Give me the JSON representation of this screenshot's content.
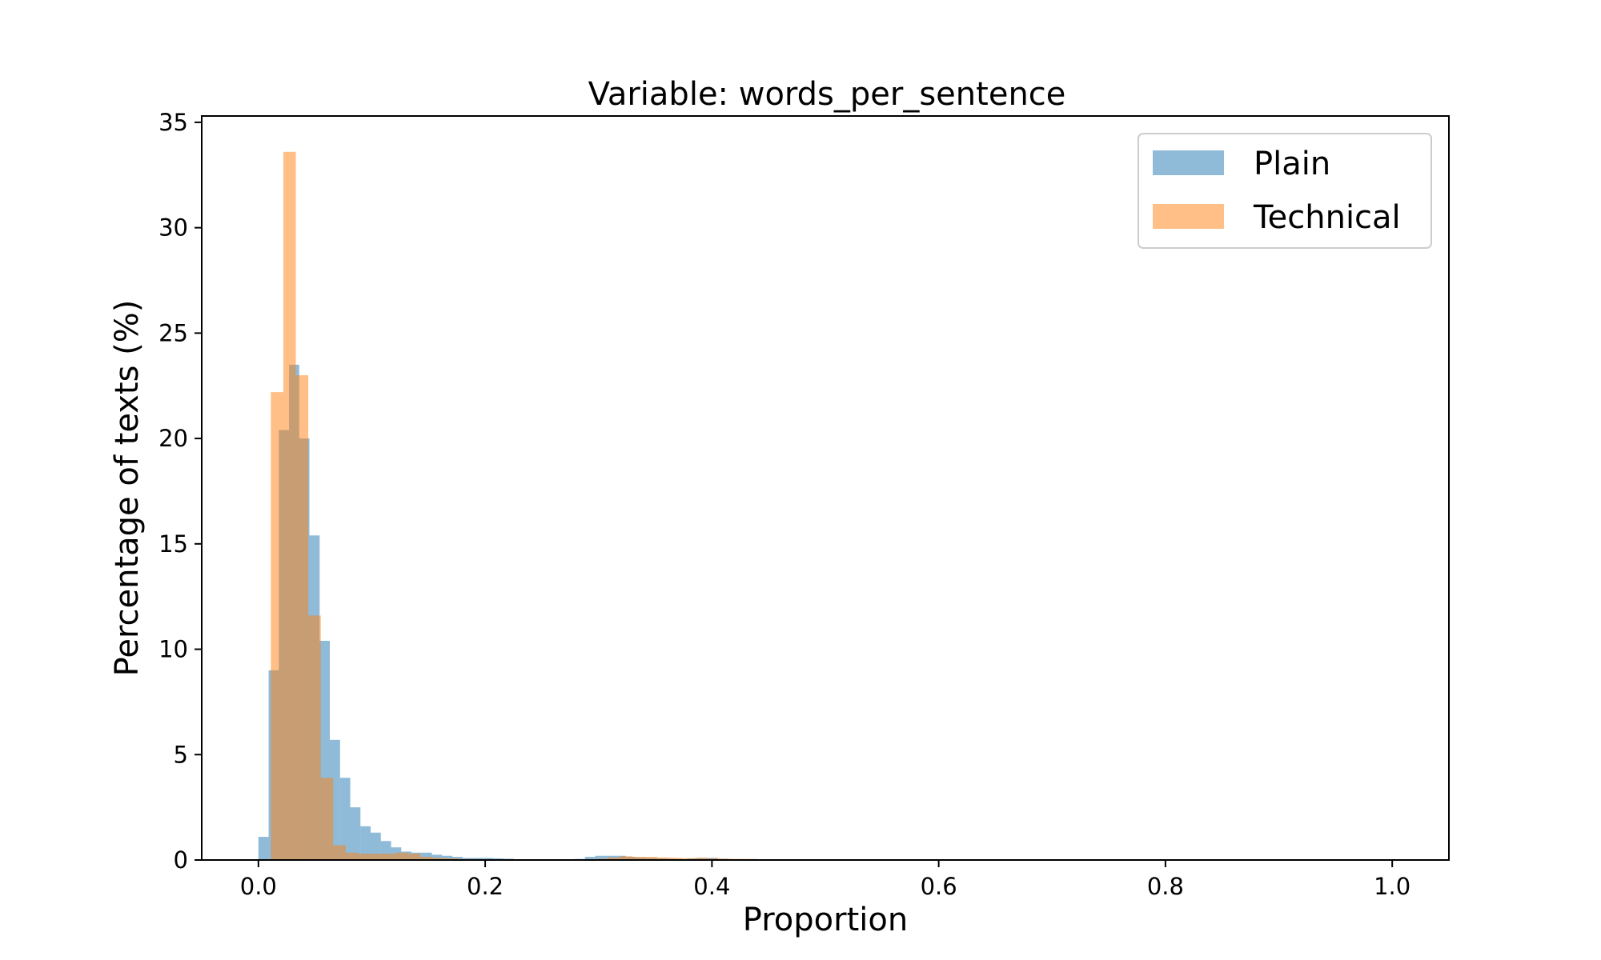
{
  "chart_data": {
    "type": "bar",
    "subtype": "histogram",
    "title": "Variable: words_per_sentence",
    "xlabel": "Proportion",
    "ylabel": "Percentage of texts (%)",
    "xlim": [
      -0.05,
      1.05
    ],
    "ylim": [
      0,
      35.3
    ],
    "xticks": [
      "0.0",
      "0.2",
      "0.4",
      "0.6",
      "0.8",
      "1.0"
    ],
    "xtick_values": [
      0.0,
      0.2,
      0.4,
      0.6,
      0.8,
      1.0
    ],
    "yticks": [
      "0",
      "5",
      "10",
      "15",
      "20",
      "25",
      "30",
      "35"
    ],
    "ytick_values": [
      0,
      5,
      10,
      15,
      20,
      25,
      30,
      35
    ],
    "grid": false,
    "legend_position": "top-right",
    "series": [
      {
        "name": "Plain",
        "color": "#1f77b4",
        "opacity": 0.5,
        "bins": [
          [
            0.0,
            0.009,
            1.1
          ],
          [
            0.009,
            0.018,
            9.0
          ],
          [
            0.018,
            0.027,
            20.4
          ],
          [
            0.027,
            0.036,
            23.5
          ],
          [
            0.036,
            0.045,
            20.0
          ],
          [
            0.045,
            0.054,
            15.4
          ],
          [
            0.054,
            0.063,
            10.4
          ],
          [
            0.063,
            0.072,
            5.7
          ],
          [
            0.072,
            0.081,
            3.9
          ],
          [
            0.081,
            0.09,
            2.5
          ],
          [
            0.09,
            0.099,
            1.6
          ],
          [
            0.099,
            0.108,
            1.3
          ],
          [
            0.108,
            0.117,
            0.9
          ],
          [
            0.117,
            0.126,
            0.6
          ],
          [
            0.126,
            0.135,
            0.4
          ],
          [
            0.135,
            0.144,
            0.35
          ],
          [
            0.144,
            0.153,
            0.35
          ],
          [
            0.153,
            0.162,
            0.25
          ],
          [
            0.162,
            0.171,
            0.2
          ],
          [
            0.171,
            0.18,
            0.15
          ],
          [
            0.18,
            0.189,
            0.1
          ],
          [
            0.189,
            0.198,
            0.1
          ],
          [
            0.198,
            0.207,
            0.1
          ],
          [
            0.207,
            0.216,
            0.08
          ],
          [
            0.216,
            0.225,
            0.06
          ],
          [
            0.225,
            0.234,
            0.04
          ],
          [
            0.234,
            0.243,
            0.03
          ],
          [
            0.243,
            0.252,
            0.02
          ],
          [
            0.252,
            0.261,
            0.02
          ],
          [
            0.261,
            0.27,
            0.02
          ],
          [
            0.27,
            0.279,
            0.03
          ],
          [
            0.279,
            0.288,
            0.05
          ],
          [
            0.288,
            0.297,
            0.15
          ],
          [
            0.297,
            0.306,
            0.2
          ],
          [
            0.306,
            0.315,
            0.2
          ],
          [
            0.315,
            0.324,
            0.2
          ],
          [
            0.324,
            0.333,
            0.15
          ],
          [
            0.333,
            0.342,
            0.12
          ],
          [
            0.342,
            0.351,
            0.1
          ],
          [
            0.351,
            0.36,
            0.08
          ],
          [
            0.36,
            0.369,
            0.06
          ],
          [
            0.369,
            0.378,
            0.05
          ],
          [
            0.378,
            0.387,
            0.08
          ],
          [
            0.387,
            0.396,
            0.1
          ],
          [
            0.396,
            0.405,
            0.1
          ],
          [
            0.405,
            0.414,
            0.06
          ],
          [
            0.414,
            0.423,
            0.04
          ],
          [
            0.423,
            0.432,
            0.02
          ]
        ]
      },
      {
        "name": "Technical",
        "color": "#ff7f0e",
        "opacity": 0.5,
        "bins": [
          [
            0.0,
            0.011,
            0.0
          ],
          [
            0.011,
            0.022,
            22.2
          ],
          [
            0.022,
            0.033,
            33.6
          ],
          [
            0.033,
            0.044,
            23.0
          ],
          [
            0.044,
            0.055,
            11.6
          ],
          [
            0.055,
            0.066,
            3.9
          ],
          [
            0.066,
            0.077,
            0.7
          ],
          [
            0.077,
            0.088,
            0.35
          ],
          [
            0.088,
            0.099,
            0.3
          ],
          [
            0.099,
            0.11,
            0.3
          ],
          [
            0.11,
            0.121,
            0.3
          ],
          [
            0.121,
            0.132,
            0.35
          ],
          [
            0.132,
            0.143,
            0.3
          ],
          [
            0.143,
            0.154,
            0.15
          ],
          [
            0.154,
            0.165,
            0.1
          ],
          [
            0.165,
            0.176,
            0.08
          ],
          [
            0.176,
            0.187,
            0.05
          ],
          [
            0.187,
            0.198,
            0.04
          ],
          [
            0.198,
            0.209,
            0.03
          ],
          [
            0.209,
            0.22,
            0.02
          ],
          [
            0.22,
            0.231,
            0.01
          ],
          [
            0.231,
            0.242,
            0.01
          ],
          [
            0.242,
            0.253,
            0.01
          ],
          [
            0.253,
            0.264,
            0.01
          ],
          [
            0.264,
            0.275,
            0.01
          ],
          [
            0.275,
            0.286,
            0.02
          ],
          [
            0.286,
            0.297,
            0.03
          ],
          [
            0.297,
            0.308,
            0.06
          ],
          [
            0.308,
            0.319,
            0.12
          ],
          [
            0.319,
            0.33,
            0.18
          ],
          [
            0.33,
            0.341,
            0.15
          ],
          [
            0.341,
            0.352,
            0.15
          ],
          [
            0.352,
            0.363,
            0.12
          ],
          [
            0.363,
            0.374,
            0.1
          ],
          [
            0.374,
            0.385,
            0.08
          ],
          [
            0.385,
            0.396,
            0.1
          ],
          [
            0.396,
            0.407,
            0.08
          ],
          [
            0.407,
            0.418,
            0.06
          ],
          [
            0.418,
            0.429,
            0.05
          ],
          [
            0.429,
            0.44,
            0.05
          ],
          [
            0.44,
            0.451,
            0.03
          ]
        ]
      }
    ]
  }
}
